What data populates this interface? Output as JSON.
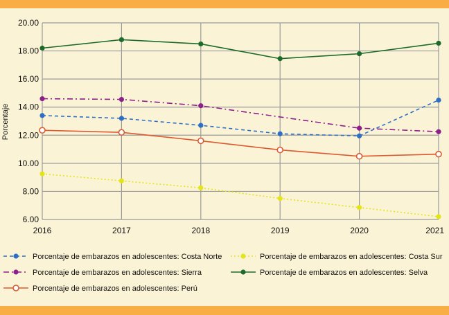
{
  "chart_data": {
    "type": "line",
    "title": "",
    "xlabel": "",
    "ylabel": "Porcentaje",
    "x": [
      "2016",
      "2017",
      "2018",
      "2019",
      "2020",
      "2021"
    ],
    "ylim": [
      6,
      20
    ],
    "yticks": [
      "6.00",
      "8.00",
      "10.00",
      "12.00",
      "14.00",
      "16.00",
      "18.00",
      "20.00"
    ],
    "grid": true,
    "legend_position": "bottom",
    "series": [
      {
        "name": "Porcentaje de embarazos en adolescentes: Costa Norte",
        "color": "#2e6fc4",
        "dash": "dashed",
        "marker": "filled",
        "values": [
          13.4,
          13.2,
          12.7,
          12.1,
          11.95,
          14.5
        ]
      },
      {
        "name": "Porcentaje de embarazos en adolescentes: Costa Sur",
        "color": "#e3e51b",
        "dash": "dotted",
        "marker": "filled",
        "values": [
          9.25,
          8.75,
          8.25,
          7.5,
          6.85,
          6.2
        ]
      },
      {
        "name": "Porcentaje de embarazos en adolescentes: Sierra",
        "color": "#8e1f8a",
        "dash": "dashdot",
        "marker": "filled",
        "values": [
          14.6,
          14.55,
          14.1,
          null,
          12.5,
          12.25
        ]
      },
      {
        "name": "Porcentaje de embarazos en adolescentes: Selva",
        "color": "#1c6b2b",
        "dash": "solid",
        "marker": "filled",
        "values": [
          18.2,
          18.8,
          18.5,
          17.45,
          17.8,
          18.55
        ]
      },
      {
        "name": "Porcentaje de embarazos en adolescentes: Perú",
        "color": "#dc5a32",
        "dash": "solid",
        "marker": "open",
        "values": [
          12.35,
          12.2,
          11.6,
          10.95,
          10.5,
          10.65
        ]
      }
    ]
  },
  "colors": {
    "background": "#fbf3d6",
    "band": "#f8ad45",
    "grid": "#9a9a9a"
  }
}
